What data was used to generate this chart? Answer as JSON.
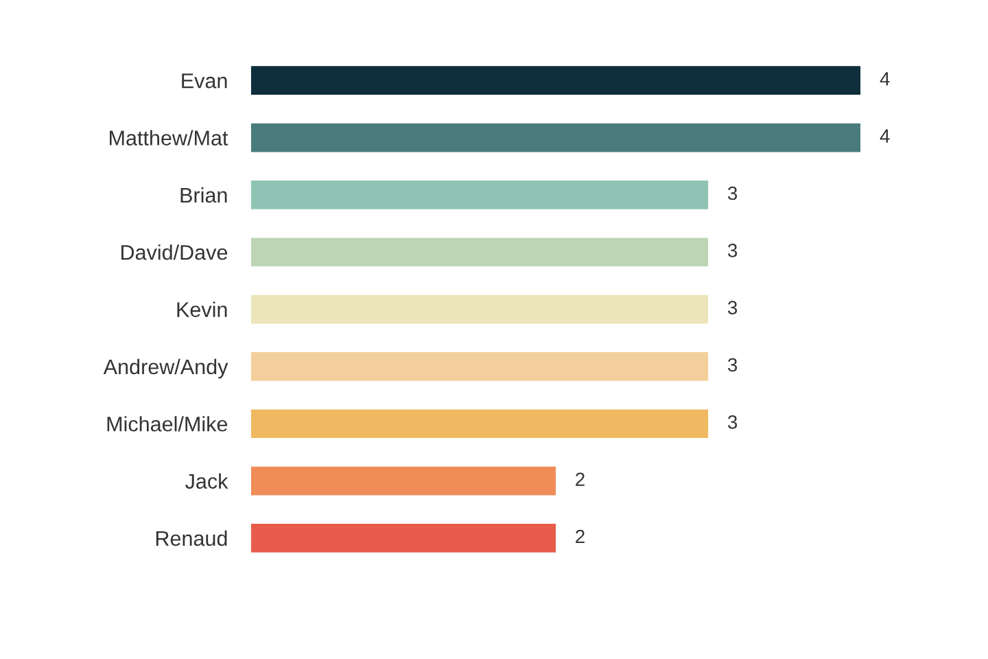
{
  "chart_data": {
    "type": "bar",
    "orientation": "horizontal",
    "categories": [
      "Evan",
      "Matthew/Mat",
      "Brian",
      "David/Dave",
      "Kevin",
      "Andrew/Andy",
      "Michael/Mike",
      "Jack",
      "Renaud"
    ],
    "values": [
      4,
      4,
      3,
      3,
      3,
      3,
      3,
      2,
      2
    ],
    "colors": [
      "#0d2e3a",
      "#4a7b7b",
      "#8fc4b4",
      "#bdd5b5",
      "#ece5b9",
      "#f3d09b",
      "#f0b961",
      "#ef8c58",
      "#e85c4c"
    ],
    "xlim": [
      0,
      4
    ],
    "data_labels": true,
    "tick_labels": "y",
    "grid": false,
    "legend": false
  }
}
